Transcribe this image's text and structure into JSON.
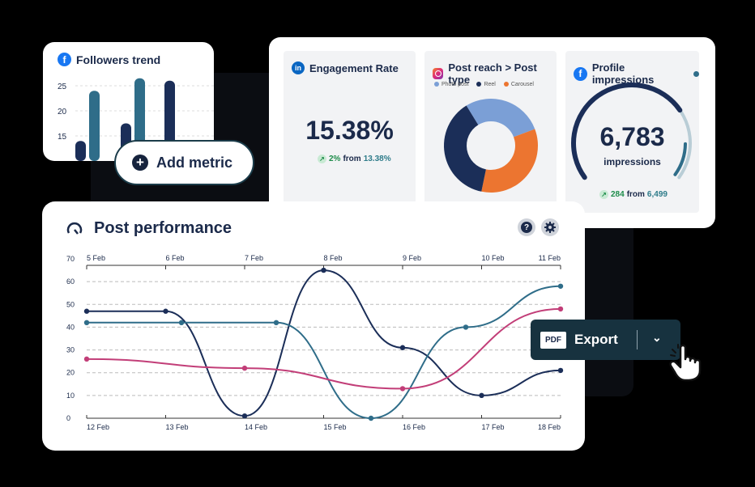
{
  "followers_trend": {
    "title": "Followers trend",
    "y_ticks": [
      "25",
      "20",
      "15"
    ],
    "chart_data": {
      "type": "bar",
      "series": [
        {
          "values": [
            14,
            18
          ]
        },
        {
          "values": [
            24,
            26
          ]
        }
      ],
      "visible_values_estimate": [
        14,
        24,
        17.5,
        26.5,
        26
      ]
    }
  },
  "add_metric": {
    "label": "Add metric"
  },
  "engagement": {
    "title": "Engagement Rate",
    "value": "15.38%",
    "delta": "2%",
    "from_label": "from",
    "from_value": "13.38%"
  },
  "post_reach": {
    "title": "Post reach > Post type",
    "legend": [
      "Photo post",
      "Reel",
      "Carousel"
    ],
    "colors": [
      "#7b9fd6",
      "#1b2e58",
      "#ec7530"
    ],
    "chart_data": {
      "type": "pie",
      "labels": [
        "Photo post",
        "Reel",
        "Carousel"
      ],
      "values": [
        28,
        38,
        34
      ]
    }
  },
  "impressions": {
    "title": "Profile impressions",
    "value": "6,783",
    "unit": "impressions",
    "delta": "284",
    "from_label": "from",
    "from_value": "6,499",
    "gauge_fraction": 0.72
  },
  "post_performance": {
    "title": "Post performance",
    "help_icon": "?",
    "settings_icon": "gear-icon",
    "chart_data": {
      "type": "line",
      "y_ticks": [
        0,
        10,
        20,
        30,
        40,
        50,
        60,
        70
      ],
      "ylim": [
        0,
        70
      ],
      "top_x_labels": [
        "5 Feb",
        "6 Feb",
        "7 Feb",
        "8 Feb",
        "9 Feb",
        "10 Feb",
        "11 Feb"
      ],
      "bottom_x_labels": [
        "12 Feb",
        "13 Feb",
        "14 Feb",
        "15 Feb",
        "16 Feb",
        "17 Feb",
        "18 Feb"
      ],
      "series": [
        {
          "color": "#1b2e58",
          "values": [
            47,
            47,
            1,
            65,
            31,
            10,
            21
          ]
        },
        {
          "color": "#2f6d89",
          "values": [
            42,
            42,
            42,
            0,
            40,
            58
          ]
        },
        {
          "color": "#c23e78",
          "values": [
            26,
            22,
            13,
            48
          ]
        }
      ]
    }
  },
  "export": {
    "pdf_label": "PDF",
    "label": "Export"
  }
}
